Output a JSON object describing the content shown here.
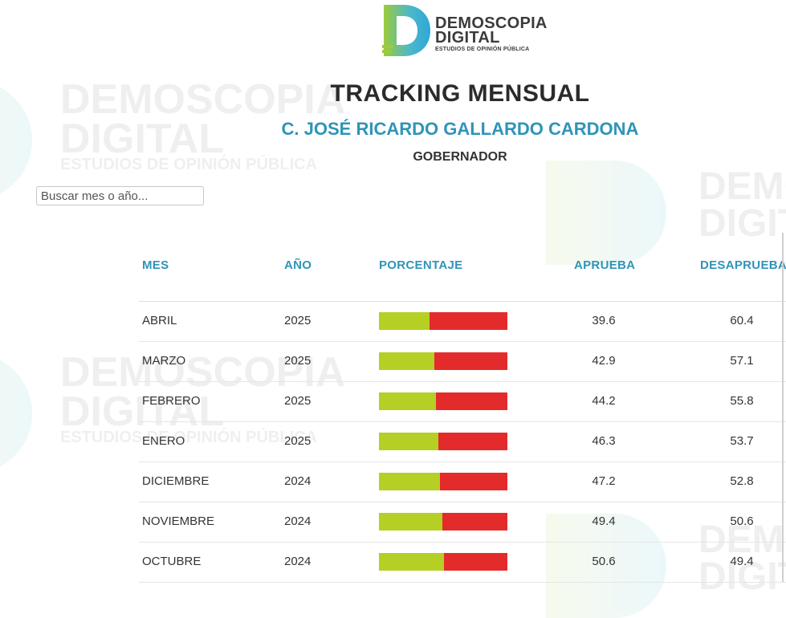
{
  "brand": {
    "name_line1": "DEMOSCOPIA",
    "name_line2": "DIGITAL",
    "tagline": "ESTUDIOS DE OPINIÓN PÚBLICA",
    "colors": {
      "green": "#9ccb3b",
      "blue": "#33b3d8",
      "text": "#3b3b3b"
    }
  },
  "page": {
    "title": "TRACKING MENSUAL",
    "subtitle": "C. JOSÉ RICARDO GALLARDO CARDONA",
    "role": "GOBERNADOR"
  },
  "search": {
    "placeholder": "Buscar mes o año..."
  },
  "table": {
    "headers": {
      "mes": "MES",
      "anio": "AÑO",
      "porcentaje": "PORCENTAJE",
      "aprueba": "APRUEBA",
      "desaprueba": "DESAPRUEBA"
    },
    "rows": [
      {
        "mes": "ABRIL",
        "anio": "2025",
        "aprueba": "39.6",
        "desaprueba": "60.4"
      },
      {
        "mes": "MARZO",
        "anio": "2025",
        "aprueba": "42.9",
        "desaprueba": "57.1"
      },
      {
        "mes": "FEBRERO",
        "anio": "2025",
        "aprueba": "44.2",
        "desaprueba": "55.8"
      },
      {
        "mes": "ENERO",
        "anio": "2025",
        "aprueba": "46.3",
        "desaprueba": "53.7"
      },
      {
        "mes": "DICIEMBRE",
        "anio": "2024",
        "aprueba": "47.2",
        "desaprueba": "52.8"
      },
      {
        "mes": "NOVIEMBRE",
        "anio": "2024",
        "aprueba": "49.4",
        "desaprueba": "50.6"
      },
      {
        "mes": "OCTUBRE",
        "anio": "2024",
        "aprueba": "50.6",
        "desaprueba": "49.4"
      }
    ],
    "colors": {
      "aprueba": "#b5cf24",
      "desaprueba": "#e42b2b",
      "header": "#2f94b8"
    }
  }
}
